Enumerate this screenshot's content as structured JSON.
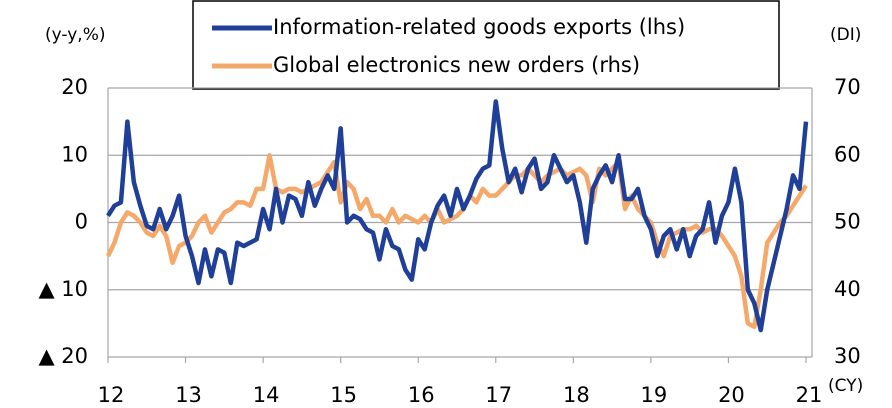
{
  "chart_data": {
    "type": "line",
    "y_unit": "(y-y,%)",
    "y2_unit": "(DI)",
    "x_unit": "(CY)",
    "categories": [
      "12",
      null,
      null,
      null,
      null,
      null,
      null,
      null,
      null,
      null,
      null,
      null,
      "13",
      null,
      null,
      null,
      null,
      null,
      null,
      null,
      null,
      null,
      null,
      null,
      "14",
      null,
      null,
      null,
      null,
      null,
      null,
      null,
      null,
      null,
      null,
      null,
      "15",
      null,
      null,
      null,
      null,
      null,
      null,
      null,
      null,
      null,
      null,
      null,
      "16",
      null,
      null,
      null,
      null,
      null,
      null,
      null,
      null,
      null,
      null,
      null,
      "17",
      null,
      null,
      null,
      null,
      null,
      null,
      null,
      null,
      null,
      null,
      null,
      "18",
      null,
      null,
      null,
      null,
      null,
      null,
      null,
      null,
      null,
      null,
      null,
      "19",
      null,
      null,
      null,
      null,
      null,
      null,
      null,
      null,
      null,
      null,
      null,
      "20",
      null,
      null,
      null,
      null,
      null,
      null,
      null,
      null,
      null,
      null,
      null,
      "21"
    ],
    "series": [
      {
        "name": "Information-related goods exports (lhs)",
        "color": "#1f3f99",
        "values": [
          1,
          2.5,
          3,
          15,
          6,
          2.5,
          -0.5,
          -1,
          2,
          -1,
          1,
          4,
          -2,
          -5,
          -9,
          -4,
          -8,
          -4,
          -4.5,
          -9,
          -3,
          -3.5,
          -3,
          -2.5,
          2,
          -1,
          5,
          0,
          4,
          3.5,
          1,
          6,
          2.5,
          5,
          7,
          5,
          14,
          0,
          1,
          0.5,
          -1,
          -1.5,
          -5.5,
          -1,
          -3.5,
          -4,
          -7,
          -8.5,
          -2.5,
          -4,
          0,
          2.5,
          4,
          1,
          5,
          2,
          4,
          6.5,
          8,
          8.5,
          18,
          11,
          6,
          8,
          4.5,
          8,
          9.5,
          5,
          6,
          10,
          8,
          6,
          7,
          3,
          -3,
          5,
          7,
          8.5,
          6,
          10,
          3.5,
          3.5,
          5,
          1,
          -1,
          -5,
          -2,
          -1,
          -4,
          -1,
          -5,
          -2,
          -1,
          3,
          -3,
          1,
          3,
          8,
          3,
          -10,
          -12,
          -16,
          -10,
          -6,
          -2,
          2,
          7,
          5,
          15
        ]
      },
      {
        "name": "Global electronics new orders (rhs)",
        "color": "#f4a86a",
        "axis": "y2",
        "values": [
          45,
          47,
          50,
          51.5,
          51,
          50,
          48.5,
          48,
          49.5,
          48,
          44,
          46.5,
          47,
          48,
          50,
          51,
          48.5,
          50,
          51.5,
          52,
          53,
          53,
          52.5,
          55,
          55,
          60,
          55,
          54.5,
          55,
          55,
          54.5,
          55,
          55.5,
          56,
          57.5,
          59,
          53,
          56,
          55,
          52,
          53.5,
          51,
          51,
          50,
          52,
          50,
          51,
          50.5,
          50,
          51,
          50,
          52,
          50,
          50.5,
          51,
          52,
          54,
          53,
          55,
          54,
          54,
          55,
          56,
          57,
          57,
          58,
          57,
          56,
          57,
          57.5,
          58,
          57,
          57.5,
          58,
          57,
          53,
          58,
          57,
          58,
          59,
          52,
          54,
          52,
          51,
          50,
          47,
          45,
          48,
          48.5,
          49,
          49,
          49.5,
          48.5,
          49,
          49,
          48,
          46.5,
          45,
          42,
          35,
          34.5,
          40,
          47,
          48.5,
          50,
          51,
          52.5,
          54,
          55.5
        ]
      }
    ],
    "ylim": [
      -20,
      20
    ],
    "yticks": [
      20,
      10,
      0,
      {
        "value": -10,
        "label": "▲ 10"
      },
      {
        "value": -20,
        "label": "▲ 20"
      }
    ],
    "y2lim": [
      30,
      70
    ],
    "y2ticks": [
      70,
      60,
      50,
      40,
      30
    ],
    "grid": true
  }
}
